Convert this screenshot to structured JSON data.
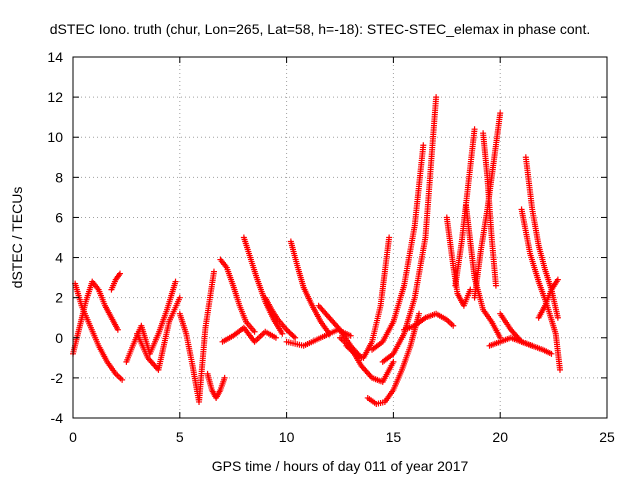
{
  "chart_data": {
    "type": "scatter",
    "title": "dSTEC Iono. truth (chur, Lon=265, Lat=58, h=-18): STEC-STEC_elemax in phase cont.",
    "xlabel": "GPS time / hours of day 011 of year 2017",
    "ylabel": "dSTEC  / TECUs",
    "xlim": [
      0,
      25
    ],
    "ylim": [
      -4,
      14
    ],
    "xticks": [
      0,
      5,
      10,
      15,
      20,
      25
    ],
    "yticks": [
      -4,
      -2,
      0,
      2,
      4,
      6,
      8,
      10,
      12,
      14
    ],
    "grid": true,
    "marker": "plus",
    "color": "#ff0000",
    "series": [
      {
        "x": [
          0.0,
          0.3,
          0.6,
          0.9,
          1.2,
          1.5,
          1.8,
          2.1
        ],
        "y": [
          -0.8,
          0.5,
          1.8,
          2.8,
          2.4,
          1.6,
          1.0,
          0.4
        ]
      },
      {
        "x": [
          0.1,
          0.4,
          0.8,
          1.2,
          1.6,
          2.0,
          2.3
        ],
        "y": [
          2.7,
          1.6,
          0.6,
          -0.4,
          -1.2,
          -1.8,
          -2.1
        ]
      },
      {
        "x": [
          1.8,
          2.0,
          2.2
        ],
        "y": [
          2.4,
          2.9,
          3.2
        ]
      },
      {
        "x": [
          2.5,
          2.8,
          3.2,
          3.6,
          4.0,
          4.4,
          4.8
        ],
        "y": [
          -1.2,
          -0.4,
          0.6,
          -0.8,
          0.2,
          1.4,
          2.8
        ]
      },
      {
        "x": [
          3.0,
          3.5,
          4.0,
          4.5,
          5.0
        ],
        "y": [
          0.2,
          -1.0,
          -1.6,
          0.8,
          2.0
        ]
      },
      {
        "x": [
          5.0,
          5.3,
          5.6,
          5.9,
          6.2,
          6.6
        ],
        "y": [
          1.2,
          0.2,
          -1.4,
          -3.2,
          0.5,
          3.3
        ]
      },
      {
        "x": [
          6.3,
          6.5,
          6.7,
          6.9,
          7.1
        ],
        "y": [
          -1.8,
          -2.6,
          -3.0,
          -2.6,
          -2.0
        ]
      },
      {
        "x": [
          6.9,
          7.2,
          7.5,
          7.8,
          8.1,
          8.5
        ],
        "y": [
          3.9,
          3.5,
          2.6,
          1.6,
          0.8,
          0.3
        ]
      },
      {
        "x": [
          7.0,
          7.5,
          8.0,
          8.5,
          9.0,
          9.5
        ],
        "y": [
          -0.2,
          0.1,
          0.5,
          -0.2,
          0.3,
          0.0
        ]
      },
      {
        "x": [
          8.0,
          8.3,
          8.6,
          9.0,
          9.4,
          9.8
        ],
        "y": [
          5.0,
          4.0,
          3.0,
          1.8,
          0.9,
          0.2
        ]
      },
      {
        "x": [
          9.0,
          9.3,
          9.6,
          10.0,
          10.4
        ],
        "y": [
          2.0,
          1.4,
          0.9,
          0.4,
          0.0
        ]
      },
      {
        "x": [
          10.2,
          10.5,
          10.8,
          11.2,
          11.6,
          12.0
        ],
        "y": [
          4.8,
          3.6,
          2.5,
          1.6,
          0.8,
          0.2
        ]
      },
      {
        "x": [
          10.0,
          10.8,
          11.6,
          12.4,
          13.0
        ],
        "y": [
          -0.2,
          -0.4,
          0.0,
          0.4,
          0.1
        ]
      },
      {
        "x": [
          11.5,
          12.0,
          12.5,
          13.0,
          13.5
        ],
        "y": [
          1.6,
          1.0,
          0.4,
          -0.4,
          -1.0
        ]
      },
      {
        "x": [
          12.5,
          13.0,
          13.5,
          14.0,
          14.5,
          15.0
        ],
        "y": [
          0.0,
          -0.5,
          -1.4,
          -2.0,
          -2.2,
          -1.2
        ]
      },
      {
        "x": [
          13.8,
          14.2,
          14.6,
          15.0,
          15.4,
          15.8,
          16.2
        ],
        "y": [
          -3.0,
          -3.3,
          -3.2,
          -2.6,
          -1.6,
          -0.4,
          1.2
        ]
      },
      {
        "x": [
          12.8,
          13.2,
          13.6,
          14.0,
          14.4,
          14.8
        ],
        "y": [
          -0.4,
          -0.8,
          -1.0,
          -0.2,
          1.6,
          5.0
        ]
      },
      {
        "x": [
          14.0,
          14.5,
          15.0,
          15.5,
          16.0,
          16.4
        ],
        "y": [
          -0.6,
          -0.2,
          0.8,
          2.6,
          5.6,
          9.6
        ]
      },
      {
        "x": [
          14.5,
          15.0,
          15.5,
          16.0,
          16.5,
          17.0
        ],
        "y": [
          -1.2,
          -0.8,
          0.2,
          2.0,
          5.0,
          12.0
        ]
      },
      {
        "x": [
          15.5,
          16.0,
          16.5,
          17.0,
          17.5,
          17.8
        ],
        "y": [
          0.4,
          0.6,
          1.0,
          1.2,
          0.9,
          0.6
        ]
      },
      {
        "x": [
          17.5,
          17.8,
          18.0,
          18.3,
          18.6
        ],
        "y": [
          6.0,
          3.6,
          2.2,
          1.6,
          2.4
        ]
      },
      {
        "x": [
          17.9,
          18.2,
          18.5,
          18.8
        ],
        "y": [
          2.6,
          4.8,
          7.6,
          10.4
        ]
      },
      {
        "x": [
          18.4,
          18.8,
          19.2,
          19.6,
          20.0
        ],
        "y": [
          6.6,
          3.0,
          1.4,
          0.8,
          0.0
        ]
      },
      {
        "x": [
          18.8,
          19.1,
          19.4,
          19.7,
          20.0
        ],
        "y": [
          2.0,
          4.4,
          6.4,
          8.8,
          11.2
        ]
      },
      {
        "x": [
          19.2,
          19.4,
          19.6,
          19.8
        ],
        "y": [
          10.2,
          8.0,
          5.0,
          2.6
        ]
      },
      {
        "x": [
          19.5,
          20.0,
          20.5,
          21.0,
          21.5
        ],
        "y": [
          -0.4,
          -0.2,
          0.0,
          -0.2,
          -0.4
        ]
      },
      {
        "x": [
          20.0,
          20.5,
          21.0,
          21.5,
          22.0,
          22.4
        ],
        "y": [
          1.2,
          0.4,
          -0.2,
          -0.4,
          -0.6,
          -0.8
        ]
      },
      {
        "x": [
          21.2,
          21.5,
          21.8,
          22.1,
          22.4,
          22.7
        ],
        "y": [
          9.0,
          6.4,
          4.6,
          3.4,
          2.4,
          1.0
        ]
      },
      {
        "x": [
          21.0,
          21.4,
          21.8,
          22.2,
          22.6,
          22.8
        ],
        "y": [
          6.4,
          4.2,
          2.8,
          1.6,
          0.2,
          -1.6
        ]
      },
      {
        "x": [
          21.8,
          22.1,
          22.4,
          22.7
        ],
        "y": [
          1.0,
          1.6,
          2.4,
          2.9
        ]
      }
    ]
  }
}
